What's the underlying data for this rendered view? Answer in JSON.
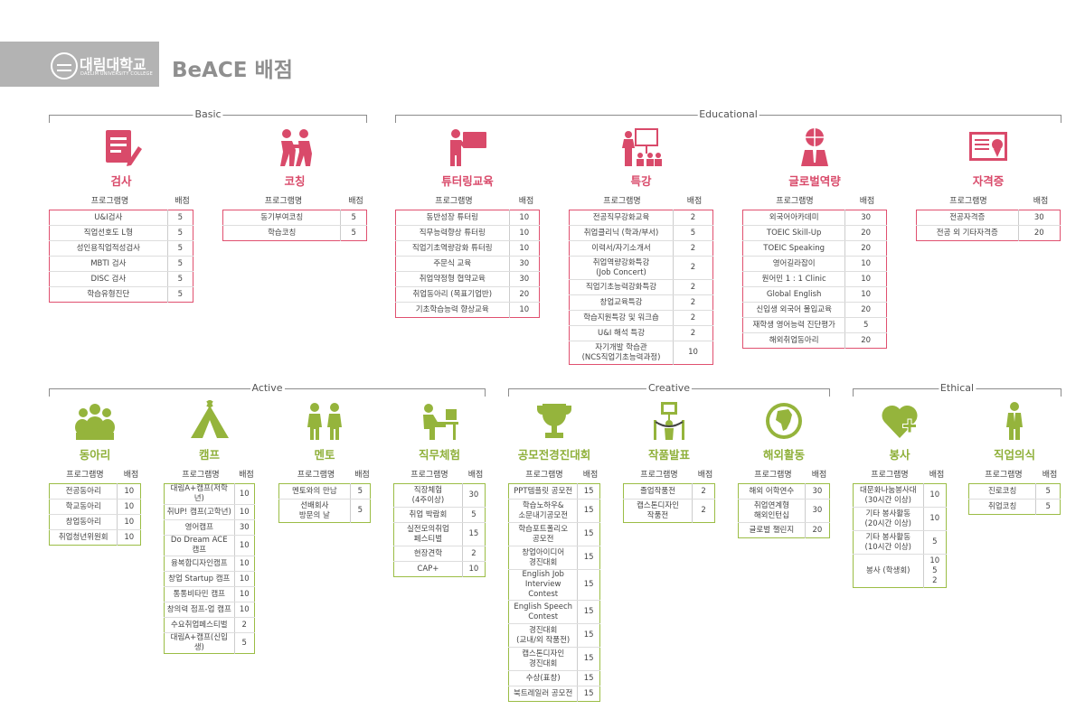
{
  "header": {
    "logo_text": "대림대학교",
    "logo_sub": "DAELIM UNIVERSITY COLLEGE",
    "title": "BeACE 배점"
  },
  "colors": {
    "pink": "#d94a6a",
    "green": "#95b43c",
    "header_bg": "#b3b3b3"
  },
  "groups": {
    "basic": "Basic",
    "educational": "Educational",
    "active": "Active",
    "creative": "Creative",
    "ethical": "Ethical"
  },
  "table_header": {
    "program": "프로그램명",
    "score": "배점"
  },
  "sections": {
    "geomsa": {
      "title": "검사",
      "icon": "clipboard-pencil-icon",
      "rows": [
        {
          "name": "U&I검사",
          "score": "5"
        },
        {
          "name": "직업선호도 L형",
          "score": "5"
        },
        {
          "name": "성인용직업적성검사",
          "score": "5"
        },
        {
          "name": "MBTI 검사",
          "score": "5"
        },
        {
          "name": "DISC 검사",
          "score": "5"
        },
        {
          "name": "학습유형진단",
          "score": "5"
        }
      ]
    },
    "coaching": {
      "title": "코칭",
      "icon": "people-pushing-icon",
      "rows": [
        {
          "name": "동기부여코칭",
          "score": "5"
        },
        {
          "name": "학습코칭",
          "score": "5"
        }
      ]
    },
    "tutoring": {
      "title": "튜터링교육",
      "icon": "presenter-board-icon",
      "rows": [
        {
          "name": "동반성장 튜터링",
          "score": "10"
        },
        {
          "name": "직무능력향상 튜터링",
          "score": "10"
        },
        {
          "name": "직업기초역량강화 튜터링",
          "score": "10"
        },
        {
          "name": "주문식 교육",
          "score": "30"
        },
        {
          "name": "취업약정형 협약교육",
          "score": "30"
        },
        {
          "name": "취업동아리 (목표기업반)",
          "score": "20"
        },
        {
          "name": "기초학습능력 향상교육",
          "score": "10"
        }
      ]
    },
    "lecture": {
      "title": "특강",
      "icon": "lecture-audience-icon",
      "rows": [
        {
          "name": "전공직무강화교육",
          "score": "2"
        },
        {
          "name": "취업클리닉 (학과/부서)",
          "score": "5"
        },
        {
          "name": "이력서/자기소개서",
          "score": "2"
        },
        {
          "name": "취업역량강화특강|(Job Concert)",
          "score": "2"
        },
        {
          "name": "직업기초능력강화특강",
          "score": "2"
        },
        {
          "name": "창업교육특강",
          "score": "2"
        },
        {
          "name": "학습지원특강 및 워크숍",
          "score": "2"
        },
        {
          "name": "U&I 해석 특강",
          "score": "2"
        },
        {
          "name": "자기개발 학습관|(NCS직업기초능력과정)",
          "score": "10"
        }
      ]
    },
    "global": {
      "title": "글로벌역량",
      "icon": "globe-person-icon",
      "rows": [
        {
          "name": "외국어아카데미",
          "score": "30"
        },
        {
          "name": "TOEIC Skill-Up",
          "score": "20"
        },
        {
          "name": "TOEIC Speaking",
          "score": "20"
        },
        {
          "name": "영어길라잡이",
          "score": "10"
        },
        {
          "name": "원어민 1 : 1 Clinic",
          "score": "10"
        },
        {
          "name": "Global English",
          "score": "10"
        },
        {
          "name": "신입생 외국어 몰입교육",
          "score": "20"
        },
        {
          "name": "재학생 영어능력 진단평가",
          "score": "5"
        },
        {
          "name": "해외취업동아리",
          "score": "20"
        }
      ]
    },
    "license": {
      "title": "자격증",
      "icon": "certificate-icon",
      "rows": [
        {
          "name": "전공자격증",
          "score": "30"
        },
        {
          "name": "전공 외 기타자격증",
          "score": "20"
        }
      ]
    },
    "club": {
      "title": "동아리",
      "icon": "group-people-icon",
      "rows": [
        {
          "name": "전공동아리",
          "score": "10"
        },
        {
          "name": "학교동아리",
          "score": "10"
        },
        {
          "name": "창업동아리",
          "score": "10"
        },
        {
          "name": "취업청년위원회",
          "score": "10"
        }
      ]
    },
    "camp": {
      "title": "캠프",
      "icon": "tent-icon",
      "rows": [
        {
          "name": "대림A+캠프(저학년)",
          "score": "10"
        },
        {
          "name": "취UP! 캠프(고학년)",
          "score": "10"
        },
        {
          "name": "영어캠프",
          "score": "30"
        },
        {
          "name": "Do Dream ACE 캠프",
          "score": "10"
        },
        {
          "name": "융복합디자인캠프",
          "score": "10"
        },
        {
          "name": "창업 Startup 캠프",
          "score": "10"
        },
        {
          "name": "통통비타민 캠프",
          "score": "10"
        },
        {
          "name": "창의력 점프-업 캠프",
          "score": "10"
        },
        {
          "name": "수요취업페스티벌",
          "score": "2"
        },
        {
          "name": "대림A+캠프(신입생)",
          "score": "5"
        }
      ]
    },
    "mentor": {
      "title": "멘토",
      "icon": "mentor-people-icon",
      "rows": [
        {
          "name": "멘토와의 만남",
          "score": "5"
        },
        {
          "name": "선배회사|방문의 날",
          "score": "5"
        }
      ]
    },
    "job": {
      "title": "직무체험",
      "icon": "desk-worker-icon",
      "rows": [
        {
          "name": "직장체험|(4주이상)",
          "score": "30"
        },
        {
          "name": "취업 박람회",
          "score": "5"
        },
        {
          "name": "실전모의취업|페스티벌",
          "score": "15"
        },
        {
          "name": "현장견학",
          "score": "2"
        },
        {
          "name": "CAP+",
          "score": "10"
        }
      ]
    },
    "contest": {
      "title": "공모전경진대회",
      "icon": "trophy-icon",
      "rows": [
        {
          "name": "PPT템플릿 공모전",
          "score": "15"
        },
        {
          "name": "학습노하우&|소문내기공모전",
          "score": "15"
        },
        {
          "name": "학습포트폴리오|공모전",
          "score": "15"
        },
        {
          "name": "창업아이디어|경진대회",
          "score": "15"
        },
        {
          "name": "English Job|Interview Contest",
          "score": "15"
        },
        {
          "name": "English Speech|Contest",
          "score": "15"
        },
        {
          "name": "경진대회|(교내/외 작품전)",
          "score": "15"
        },
        {
          "name": "캡스톤디자인|경진대회",
          "score": "15"
        },
        {
          "name": "수상(표창)",
          "score": "15"
        },
        {
          "name": "북트레일러 공모전",
          "score": "15"
        }
      ]
    },
    "exhibit": {
      "title": "작품발표",
      "icon": "exhibit-stand-icon",
      "rows": [
        {
          "name": "졸업작품전",
          "score": "2"
        },
        {
          "name": "캡스톤디자인|작품전",
          "score": "2"
        }
      ]
    },
    "overseas": {
      "title": "해외활동",
      "icon": "globe-africa-icon",
      "rows": [
        {
          "name": "해외 어학연수",
          "score": "30"
        },
        {
          "name": "취업연계형|해외인턴십",
          "score": "30"
        },
        {
          "name": "글로벌 챌린지",
          "score": "20"
        }
      ]
    },
    "volunteer": {
      "title": "봉사",
      "icon": "heart-plus-icon",
      "rows": [
        {
          "name": "대문화나눔봉사대|(30시간 이상)",
          "score": "10"
        },
        {
          "name": "기타 봉사활동|(20시간 이상)",
          "score": "10"
        },
        {
          "name": "기타 봉사활동|(10시간 이상)",
          "score": "5"
        },
        {
          "name": "봉사 (학생회)",
          "score": "10|5|2"
        }
      ]
    },
    "ethic": {
      "title": "직업의식",
      "icon": "businessman-icon",
      "rows": [
        {
          "name": "진로코칭",
          "score": "5"
        },
        {
          "name": "취업코칭",
          "score": "5"
        }
      ]
    }
  }
}
